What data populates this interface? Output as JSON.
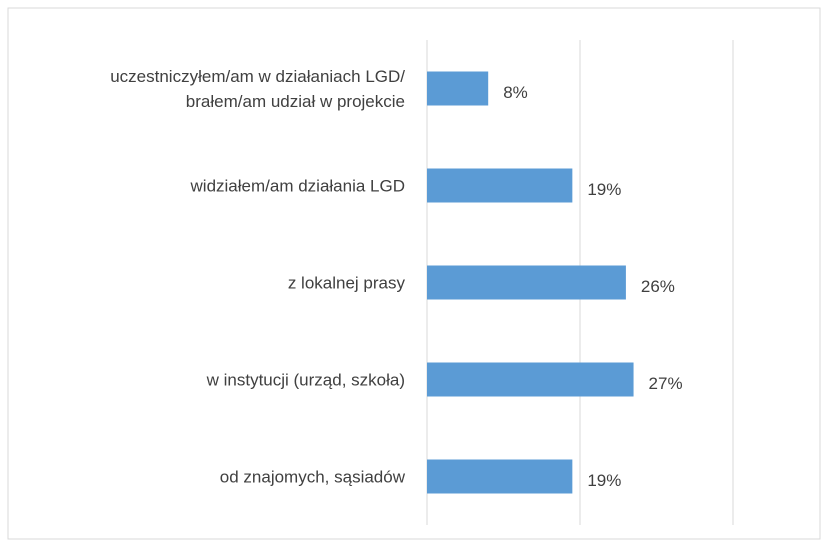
{
  "chart_data": {
    "type": "bar",
    "orientation": "horizontal",
    "categories": [
      "uczestniczyłem/am w działaniach LGD/\nbrałem/am udział w projekcie",
      "widziałem/am działania LGD",
      "z lokalnej prasy",
      "w instytucji (urząd, szkoła)",
      "od znajomych, sąsiadów"
    ],
    "values": [
      8,
      19,
      26,
      27,
      19
    ],
    "value_labels": [
      "8%",
      "19%",
      "26%",
      "27%",
      "19%"
    ],
    "color": "#5b9bd5",
    "xlim": [
      0,
      40
    ],
    "xticks": [
      0,
      20,
      40
    ],
    "grid": true
  }
}
